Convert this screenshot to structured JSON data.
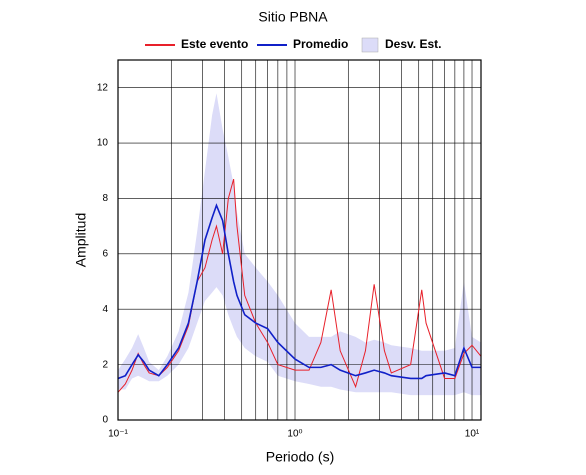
{
  "chart_data": {
    "type": "line",
    "title": "Sitio PBNA",
    "x_label": "Periodo (s)",
    "y_label": "Amplitud",
    "log_x": true,
    "grid": true,
    "legend": "top",
    "x": [
      0.1,
      0.11,
      0.12,
      0.13,
      0.14,
      0.15,
      0.17,
      0.19,
      0.22,
      0.25,
      0.28,
      0.31,
      0.34,
      0.36,
      0.39,
      0.42,
      0.45,
      0.47,
      0.52,
      0.6,
      0.7,
      0.8,
      1.0,
      1.2,
      1.4,
      1.6,
      1.8,
      2.2,
      2.5,
      2.8,
      3.2,
      3.5,
      4.5,
      5.2,
      5.5,
      7,
      8,
      9,
      10,
      11.24
    ],
    "series": [
      {
        "name": "Este evento",
        "color": "#e8202a",
        "values": [
          1.0,
          1.3,
          1.8,
          2.4,
          2.0,
          1.7,
          1.6,
          1.9,
          2.5,
          3.4,
          5.0,
          5.5,
          6.5,
          7.0,
          6.0,
          8.0,
          8.7,
          7.0,
          4.5,
          3.5,
          2.8,
          2.0,
          1.8,
          1.8,
          2.8,
          4.7,
          2.5,
          1.2,
          2.5,
          4.9,
          2.5,
          1.7,
          2.0,
          4.7,
          3.5,
          1.5,
          1.5,
          2.4,
          2.7,
          2.3
        ]
      },
      {
        "name": "Promedio",
        "color": "#1020c8",
        "values": [
          1.5,
          1.6,
          2.0,
          2.35,
          2.1,
          1.8,
          1.6,
          2.0,
          2.6,
          3.5,
          5.0,
          6.5,
          7.3,
          7.75,
          7.2,
          6.0,
          5.0,
          4.5,
          3.8,
          3.5,
          3.3,
          2.8,
          2.2,
          1.9,
          1.9,
          2.0,
          1.8,
          1.6,
          1.7,
          1.8,
          1.7,
          1.6,
          1.5,
          1.5,
          1.6,
          1.7,
          1.6,
          2.6,
          1.9,
          1.9
        ]
      },
      {
        "name": "Desv. Est.",
        "color": "#dcdcf8",
        "type": "band",
        "upper": [
          1.8,
          2.2,
          2.6,
          3.1,
          2.6,
          2.1,
          1.8,
          2.3,
          3.2,
          4.6,
          6.8,
          9.0,
          11.0,
          11.8,
          10.5,
          9.5,
          8.5,
          7.5,
          6.0,
          5.5,
          5.0,
          4.5,
          3.5,
          3.0,
          3.0,
          3.0,
          3.2,
          3.0,
          2.8,
          2.9,
          2.8,
          2.7,
          2.6,
          2.5,
          2.5,
          2.5,
          2.6,
          5.0,
          3.0,
          2.8
        ],
        "lower": [
          1.1,
          1.1,
          1.5,
          1.6,
          1.5,
          1.4,
          1.4,
          1.6,
          2.0,
          2.6,
          3.5,
          4.3,
          4.6,
          4.8,
          4.5,
          3.8,
          3.3,
          3.0,
          2.6,
          2.3,
          2.1,
          1.6,
          1.4,
          1.3,
          1.2,
          1.2,
          1.1,
          1.0,
          1.0,
          1.0,
          1.0,
          1.0,
          0.9,
          0.9,
          0.9,
          0.9,
          0.9,
          1.0,
          0.9,
          0.9
        ]
      }
    ],
    "xlim": [
      0.1,
      11.24
    ],
    "ylim": [
      0,
      13
    ],
    "xticks": [
      {
        "value": 0.1,
        "label": "10⁻¹"
      },
      {
        "value": 1,
        "label": "10⁰"
      },
      {
        "value": 10,
        "label": "10¹"
      }
    ],
    "xminorticks": [
      0.2,
      0.3,
      0.4,
      0.5,
      0.6,
      0.7,
      0.8,
      0.9,
      2,
      3,
      4,
      5,
      6,
      7,
      8,
      9
    ],
    "yticks": [
      0,
      2,
      4,
      6,
      8,
      10,
      12
    ]
  }
}
